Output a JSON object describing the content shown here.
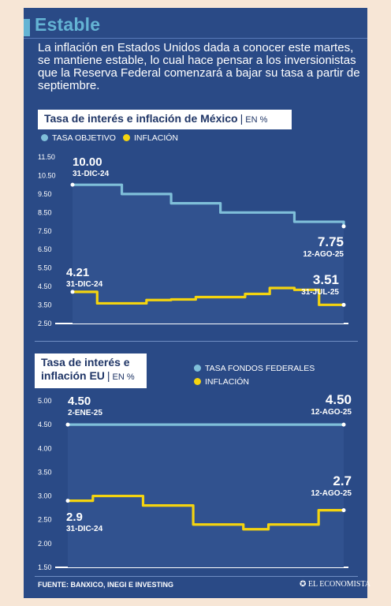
{
  "header": {
    "title": "Estable",
    "intro": "La inflación en Estados Unidos dada a conocer este martes, se mantiene estable, lo cual hace pensar a los inversionistas que la Reserva Federal comenzará a bajar su tasa a partir de septiembre."
  },
  "colors": {
    "background": "#2a4a86",
    "rate": "#7fbfd9",
    "inflation": "#f4d40f",
    "accent": "#64b4d4"
  },
  "footer": {
    "source": "FUENTE: BANXICO, INEGI E INVESTING",
    "logo": "✪ EL ECONOMISTA"
  },
  "chart_data": [
    {
      "type": "line",
      "title": "Tasa de interés e inflación de México",
      "unit": "EN %",
      "ylim": [
        2.5,
        11.5
      ],
      "yticks": [
        "11.50",
        "10.50",
        "9.50",
        "8.50",
        "7.50",
        "6.50",
        "5.50",
        "4.50",
        "3.50",
        "2.50"
      ],
      "grid": false,
      "legend": "top-left",
      "series": [
        {
          "name": "TASA OBJETIVO",
          "color": "#7fbfd9",
          "values": [
            10.0,
            10.0,
            9.5,
            9.5,
            9.0,
            9.0,
            8.5,
            8.5,
            8.5,
            8.0,
            8.0,
            7.75
          ],
          "start_label": {
            "value": "10.00",
            "date": "31-DIC-24"
          },
          "end_label": {
            "value": "7.75",
            "date": "12-AGO-25"
          }
        },
        {
          "name": "INFLACIÓN",
          "color": "#f4d40f",
          "values": [
            4.21,
            3.59,
            3.59,
            3.77,
            3.8,
            3.93,
            3.93,
            4.1,
            4.42,
            4.32,
            3.51,
            3.51
          ],
          "start_label": {
            "value": "4.21",
            "date": "31-DIC-24"
          },
          "end_label": {
            "value": "3.51",
            "date": "31-JUL-25"
          }
        }
      ]
    },
    {
      "type": "line",
      "title": "Tasa de interés e inflación EU",
      "unit": "EN %",
      "ylim": [
        1.5,
        5.0
      ],
      "yticks": [
        "5.00",
        "4.50",
        "4.00",
        "3.50",
        "3.00",
        "2.50",
        "2.00",
        "1.50"
      ],
      "grid": false,
      "legend": "top-right",
      "series": [
        {
          "name": "TASA FONDOS FEDERALES",
          "color": "#7fbfd9",
          "values": [
            4.5,
            4.5,
            4.5,
            4.5,
            4.5,
            4.5,
            4.5,
            4.5,
            4.5,
            4.5,
            4.5,
            4.5
          ],
          "start_label": {
            "value": "4.50",
            "date": "2-ENE-25"
          },
          "end_label": {
            "value": "4.50",
            "date": "12-AGO-25"
          }
        },
        {
          "name": "INFLACIÓN",
          "color": "#f4d40f",
          "values": [
            2.9,
            3.0,
            3.0,
            2.8,
            2.8,
            2.4,
            2.4,
            2.3,
            2.4,
            2.4,
            2.7,
            2.7
          ],
          "start_label": {
            "value": "2.9",
            "date": "31-DIC-24"
          },
          "end_label": {
            "value": "2.7",
            "date": "12-AGO-25"
          }
        }
      ]
    }
  ]
}
